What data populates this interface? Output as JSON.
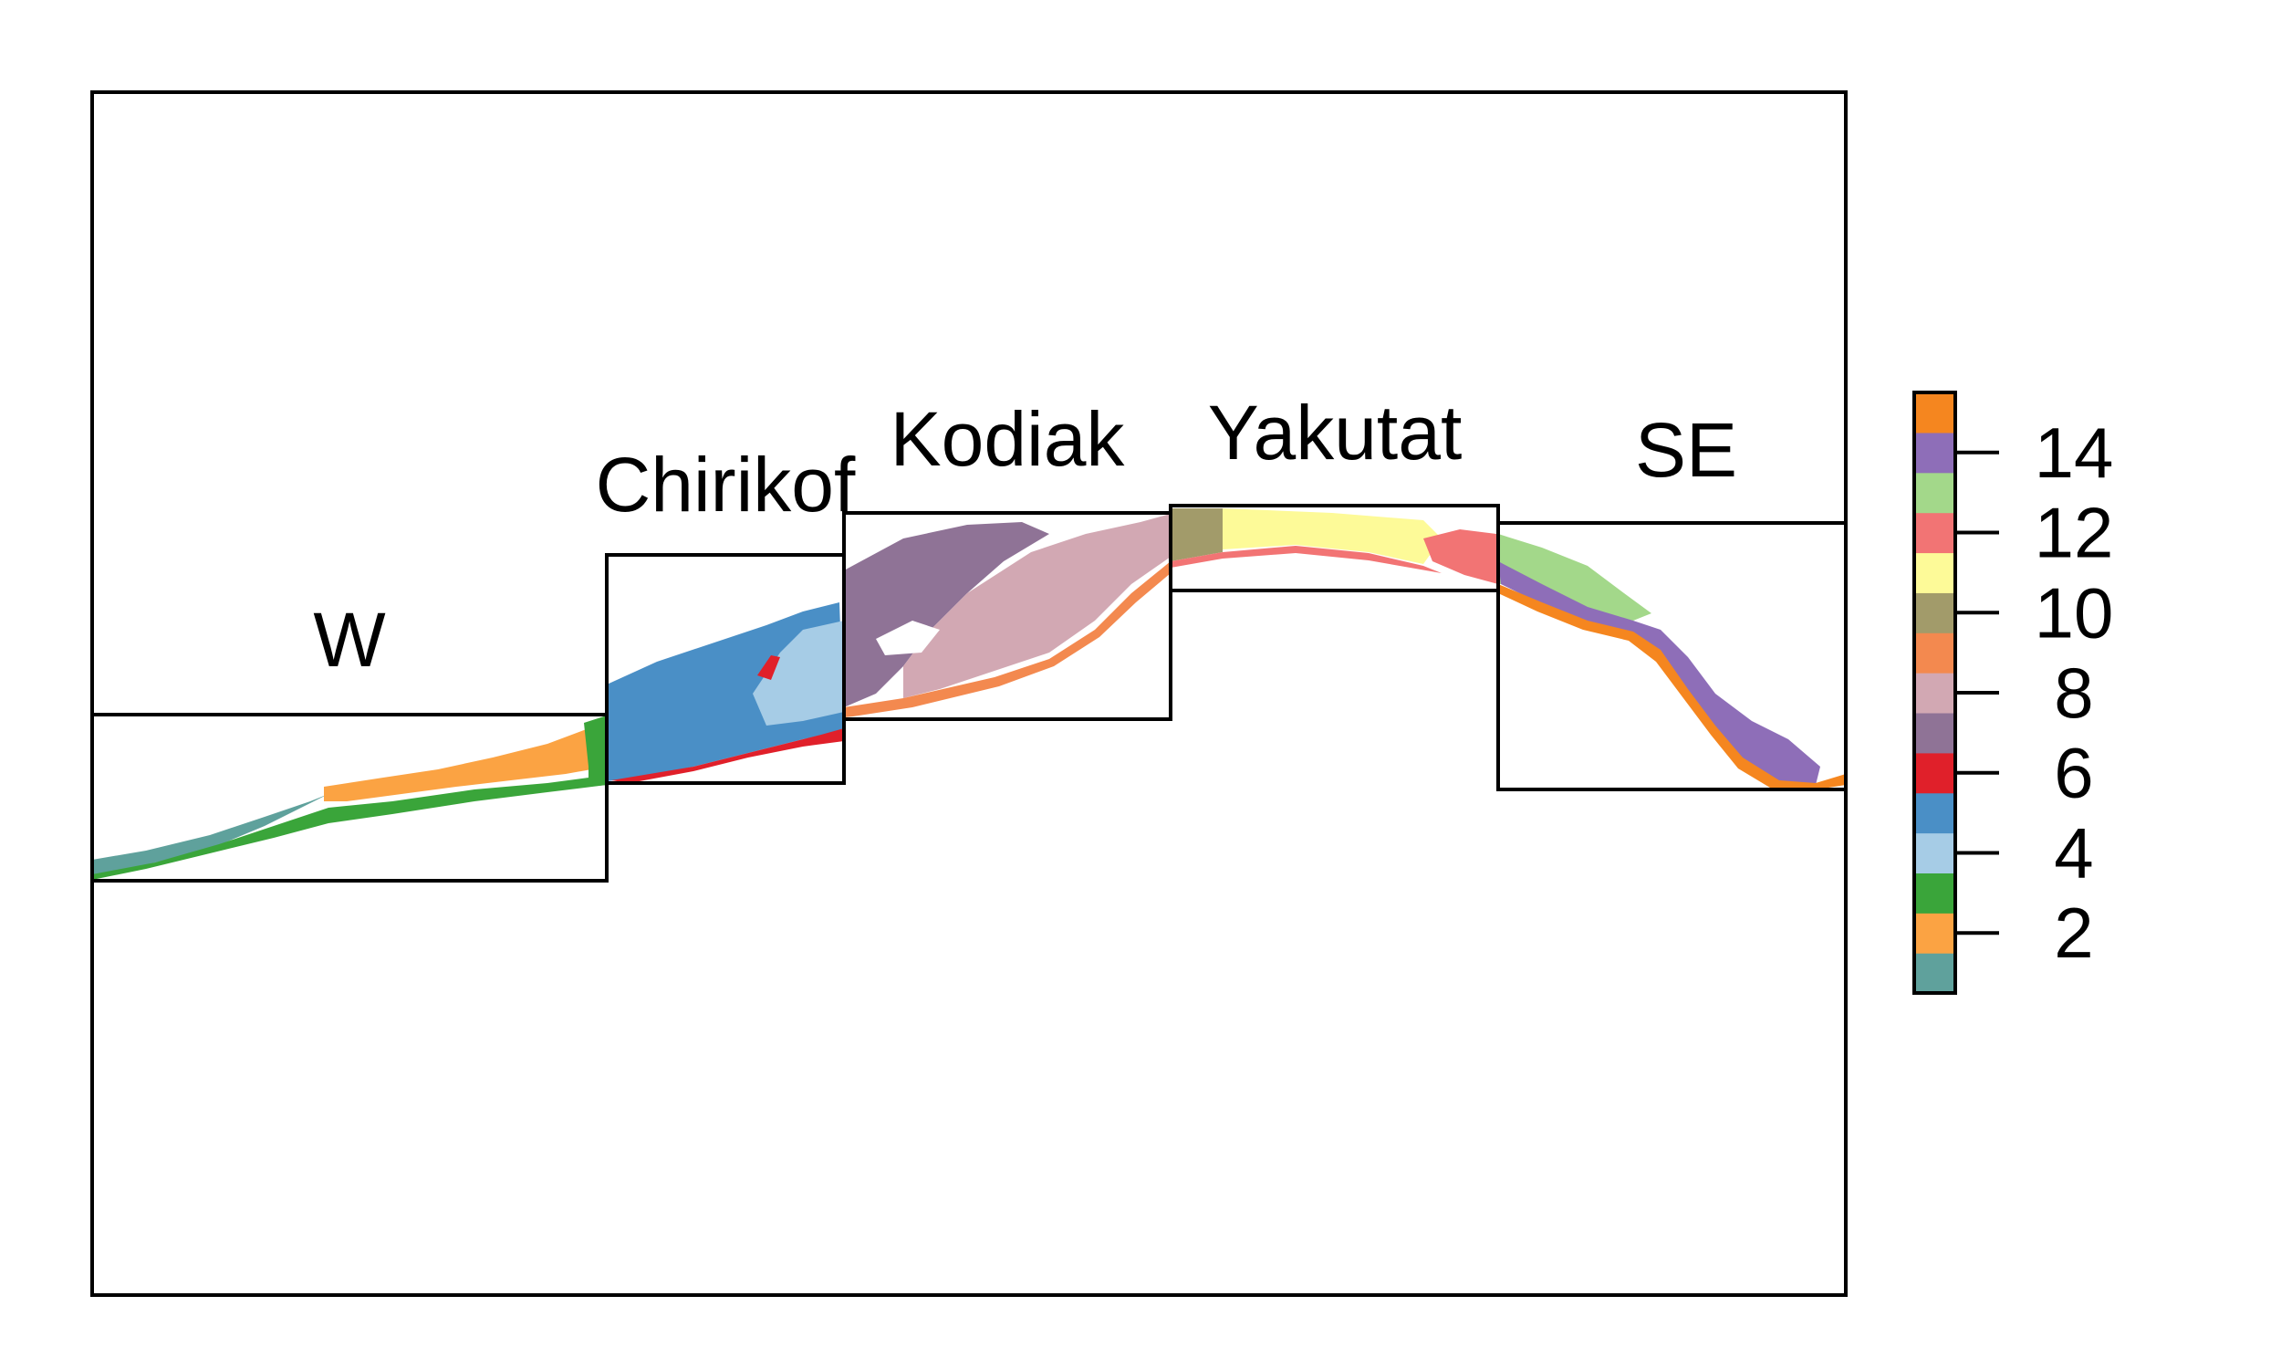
{
  "regions": [
    {
      "id": "w",
      "label": "W"
    },
    {
      "id": "chirikof",
      "label": "Chirikof"
    },
    {
      "id": "kodiak",
      "label": "Kodiak"
    },
    {
      "id": "yakutat",
      "label": "Yakutat"
    },
    {
      "id": "se",
      "label": "SE"
    }
  ],
  "legend": {
    "min": 1,
    "max": 15,
    "ticks": [
      "2",
      "4",
      "6",
      "8",
      "10",
      "12",
      "14"
    ],
    "colors": [
      "#5fa19c",
      "#fba343",
      "#3aa53a",
      "#a6cce6",
      "#4a8fc6",
      "#e0202a",
      "#8f7396",
      "#d2a8b3",
      "#f3894f",
      "#a29b6a",
      "#fdfa98",
      "#f27474",
      "#a3d88a",
      "#8e6eb8",
      "#f5861f"
    ]
  }
}
